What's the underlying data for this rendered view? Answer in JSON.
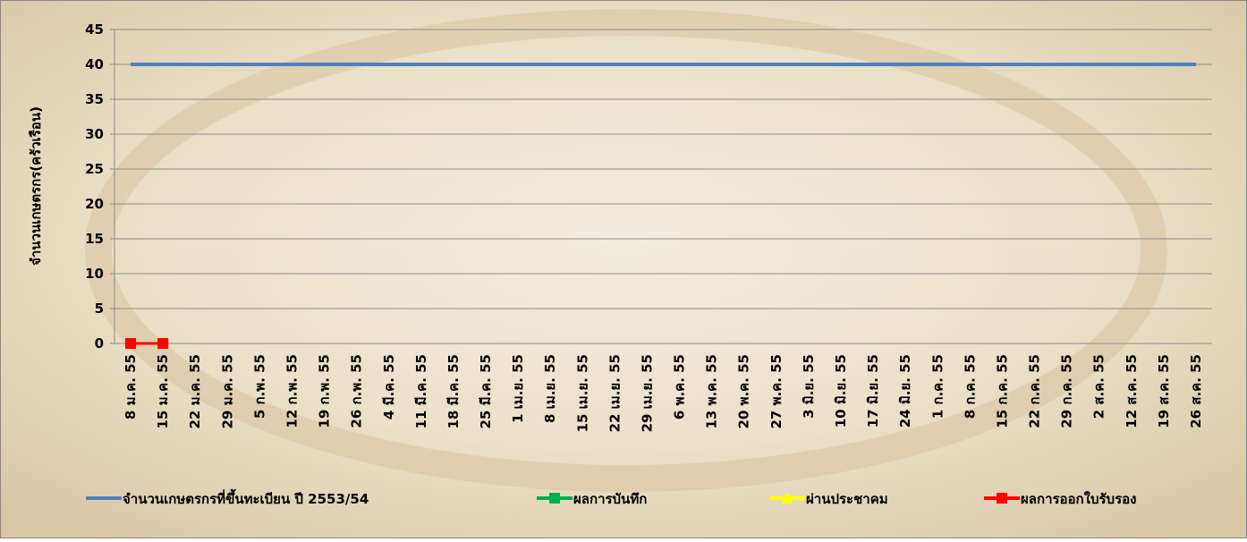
{
  "chart_data": {
    "type": "line",
    "y_label": "จำนวนเกษตรกร(ครัวเรือน)",
    "categories": [
      "8 ม.ค. 55",
      "15 ม.ค. 55",
      "22 ม.ค. 55",
      "29 ม.ค. 55",
      "5 ก.พ. 55",
      "12 ก.พ. 55",
      "19 ก.พ. 55",
      "26 ก.พ. 55",
      "4 มี.ค. 55",
      "11 มี.ค. 55",
      "18 มี.ค. 55",
      "25 มี.ค. 55",
      "1 เม.ย. 55",
      "8 เม.ย. 55",
      "15 เม.ย. 55",
      "22 เม.ย. 55",
      "29 เม.ย. 55",
      "6 พ.ค. 55",
      "13 พ.ค. 55",
      "20 พ.ค. 55",
      "27 พ.ค. 55",
      "3 มิ.ย. 55",
      "10 มิ.ย. 55",
      "17 มิ.ย. 55",
      "24 มิ.ย. 55",
      "1 ก.ค. 55",
      "8 ก.ค. 55",
      "15 ก.ค. 55",
      "22 ก.ค. 55",
      "29 ก.ค. 55",
      "2 ส.ค. 55",
      "12 ส.ค. 55",
      "19 ส.ค. 55",
      "26 ส.ค. 55"
    ],
    "series": [
      {
        "name": "จำนวนเกษตรกรที่ขึ้นทะเบียน ปี 2553/54",
        "color": "#4f81bd",
        "marker": "none",
        "values": [
          40,
          40,
          40,
          40,
          40,
          40,
          40,
          40,
          40,
          40,
          40,
          40,
          40,
          40,
          40,
          40,
          40,
          40,
          40,
          40,
          40,
          40,
          40,
          40,
          40,
          40,
          40,
          40,
          40,
          40,
          40,
          40,
          40,
          40
        ]
      },
      {
        "name": "ผลการบันทึก",
        "color": "#00b050",
        "marker": "square",
        "values": [
          0,
          0,
          null,
          null,
          null,
          null,
          null,
          null,
          null,
          null,
          null,
          null,
          null,
          null,
          null,
          null,
          null,
          null,
          null,
          null,
          null,
          null,
          null,
          null,
          null,
          null,
          null,
          null,
          null,
          null,
          null,
          null,
          null,
          null
        ]
      },
      {
        "name": "ผ่านประชาคม",
        "color": "#ffff00",
        "marker": "triangle",
        "values": [
          0,
          0,
          null,
          null,
          null,
          null,
          null,
          null,
          null,
          null,
          null,
          null,
          null,
          null,
          null,
          null,
          null,
          null,
          null,
          null,
          null,
          null,
          null,
          null,
          null,
          null,
          null,
          null,
          null,
          null,
          null,
          null,
          null,
          null
        ]
      },
      {
        "name": "ผลการออกใบรับรอง",
        "color": "#ff0000",
        "marker": "square",
        "values": [
          0,
          0,
          null,
          null,
          null,
          null,
          null,
          null,
          null,
          null,
          null,
          null,
          null,
          null,
          null,
          null,
          null,
          null,
          null,
          null,
          null,
          null,
          null,
          null,
          null,
          null,
          null,
          null,
          null,
          null,
          null,
          null,
          null,
          null
        ]
      }
    ],
    "ylim": [
      0,
      45
    ],
    "yticks": [
      0,
      5,
      10,
      15,
      20,
      25,
      30,
      35,
      40,
      45
    ],
    "grid": true,
    "legend": "bottom"
  }
}
